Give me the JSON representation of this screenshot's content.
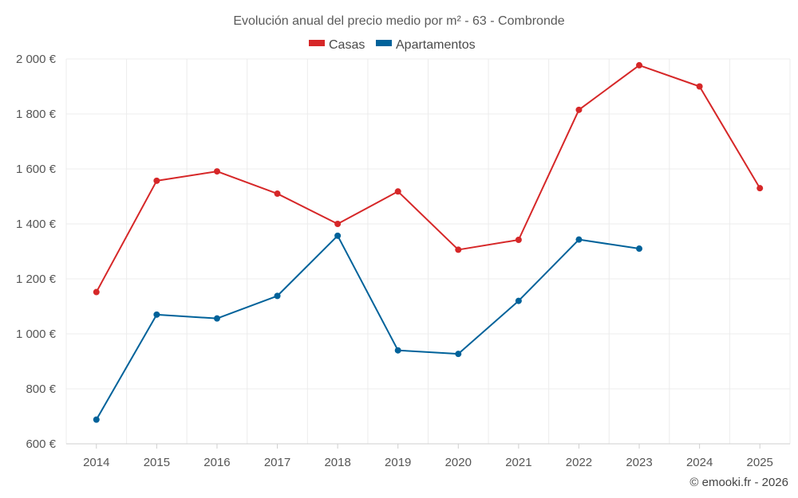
{
  "chart_data": {
    "type": "line",
    "title": "Evolución anual del precio medio por m² - 63 - Combronde",
    "categories": [
      "2014",
      "2015",
      "2016",
      "2017",
      "2018",
      "2019",
      "2020",
      "2021",
      "2022",
      "2023",
      "2024",
      "2025"
    ],
    "series": [
      {
        "name": "Casas",
        "color": "#d62728",
        "values": [
          1152,
          1557,
          1591,
          1510,
          1400,
          1518,
          1306,
          1342,
          1815,
          1977,
          1900,
          1530
        ]
      },
      {
        "name": "Apartamentos",
        "color": "#00629a",
        "values": [
          688,
          1070,
          1056,
          1138,
          1357,
          940,
          927,
          1120,
          1343,
          1310,
          null,
          null
        ]
      }
    ],
    "y_ticks": [
      600,
      800,
      1000,
      1200,
      1400,
      1600,
      1800,
      2000
    ],
    "y_tick_labels": [
      "600 €",
      "800 €",
      "1 000 €",
      "1 200 €",
      "1 400 €",
      "1 600 €",
      "1 800 €",
      "2 000 €"
    ],
    "ylim": [
      600,
      2000
    ],
    "xlabel": "",
    "ylabel": "",
    "legend_position": "top-center",
    "grid": true
  },
  "credit": "© emooki.fr - 2026"
}
